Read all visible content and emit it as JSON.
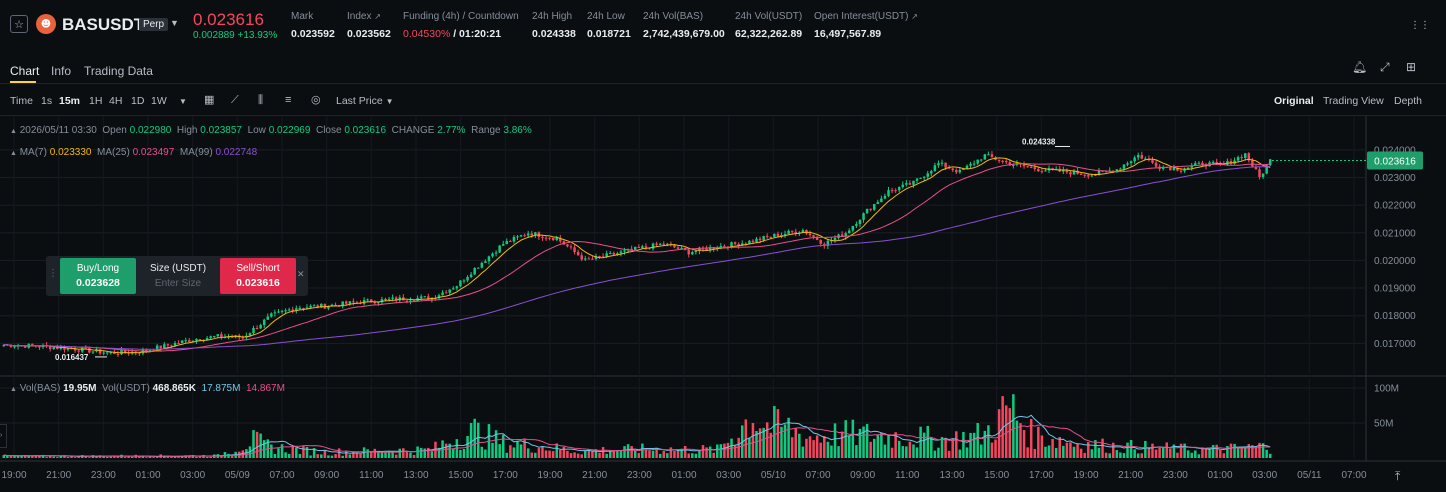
{
  "header": {
    "symbol": "BASUSDT",
    "badge": "Perp",
    "coin_icon": "bas-coin-logo",
    "last_price": "0.023616",
    "change_abs": "0.002889",
    "change_pct": "+13.93%",
    "stats": [
      {
        "label": "Mark",
        "value": "0.023592"
      },
      {
        "label": "Index",
        "value": "0.023562"
      },
      {
        "label": "Funding (4h) / Countdown",
        "value_rate": "0.04530%",
        "value_countdown": " / 01:20:21"
      },
      {
        "label": "24h High",
        "value": "0.024338"
      },
      {
        "label": "24h Low",
        "value": "0.018721"
      },
      {
        "label": "24h Vol(BAS)",
        "value": "2,742,439,679.00"
      },
      {
        "label": "24h Vol(USDT)",
        "value": "62,322,262.89"
      },
      {
        "label": "Open Interest(USDT)",
        "value": "16,497,567.89"
      }
    ]
  },
  "tabs": [
    {
      "label": "Chart",
      "active": true
    },
    {
      "label": "Info",
      "active": false
    },
    {
      "label": "Trading Data",
      "active": false
    }
  ],
  "toolbar": {
    "time_label": "Time",
    "intervals": [
      "1s",
      "15m",
      "1H",
      "4H",
      "1D",
      "1W"
    ],
    "active_interval": "15m",
    "price_type": "Last Price",
    "views": [
      "Original",
      "Trading View",
      "Depth"
    ],
    "active_view": "Original"
  },
  "ohlc": {
    "date": "2026/05/11 03:30",
    "open_label": "Open",
    "open": "0.022980",
    "high_label": "High",
    "high": "0.023857",
    "low_label": "Low",
    "low": "0.022969",
    "close_label": "Close",
    "close": "0.023616",
    "change_label": "CHANGE",
    "change": "2.77%",
    "range_label": "Range",
    "range": "3.86%"
  },
  "ma": {
    "ma7_label": "MA(7)",
    "ma7": "0.023330",
    "ma25_label": "MA(25)",
    "ma25": "0.023497",
    "ma99_label": "MA(99)",
    "ma99": "0.022748"
  },
  "trade_widget": {
    "buy_label": "Buy/Long",
    "buy_price": "0.023628",
    "size_label": "Size (USDT)",
    "size_placeholder": "Enter Size",
    "sell_label": "Sell/Short",
    "sell_price": "0.023616"
  },
  "volume": {
    "vol_bas_label": "Vol(BAS)",
    "vol_bas": "19.95M",
    "vol_usdt_label": "Vol(USDT)",
    "vol_usdt": "468.865K",
    "ma_a": "17.875M",
    "ma_b": "14.867M"
  },
  "colors": {
    "up": "#0ecb81",
    "down": "#f6465d",
    "ma7": "#f0b90b",
    "ma25": "#e84e8a",
    "ma99": "#8a4fd1",
    "vol_ma1": "#6fc6e8",
    "accent": "#fcd535"
  },
  "chart_data": {
    "type": "candlestick",
    "price_axis_ticks": [
      "0.024000",
      "0.023000",
      "0.022000",
      "0.021000",
      "0.020000",
      "0.019000",
      "0.018000",
      "0.017000"
    ],
    "volume_axis_ticks": [
      "100M",
      "50M"
    ],
    "x_ticks": [
      "19:00",
      "21:00",
      "23:00",
      "01:00",
      "03:00",
      "05/09",
      "07:00",
      "09:00",
      "11:00",
      "13:00",
      "15:00",
      "17:00",
      "19:00",
      "21:00",
      "23:00",
      "01:00",
      "03:00",
      "05/10",
      "07:00",
      "09:00",
      "11:00",
      "13:00",
      "15:00",
      "17:00",
      "19:00",
      "21:00",
      "23:00",
      "01:00",
      "03:00",
      "05/11",
      "07:00"
    ],
    "ylim": [
      0.016,
      0.0245
    ],
    "current_price_tag": "0.023616",
    "high_marker": "0.024338",
    "low_marker": "0.016437",
    "candle_close_path": [
      [
        0,
        0.01695
      ],
      [
        10,
        0.0169
      ],
      [
        20,
        0.0168
      ],
      [
        25,
        0.01672
      ],
      [
        30,
        0.01665
      ],
      [
        38,
        0.0167
      ],
      [
        45,
        0.0169
      ],
      [
        53,
        0.01715
      ],
      [
        60,
        0.01725
      ],
      [
        67,
        0.01722
      ],
      [
        75,
        0.018
      ],
      [
        82,
        0.0183
      ],
      [
        90,
        0.01835
      ],
      [
        100,
        0.0185
      ],
      [
        110,
        0.0186
      ],
      [
        120,
        0.01865
      ],
      [
        127,
        0.0191
      ],
      [
        132,
        0.0197
      ],
      [
        140,
        0.0206
      ],
      [
        147,
        0.021
      ],
      [
        155,
        0.0208
      ],
      [
        163,
        0.02
      ],
      [
        170,
        0.0202
      ],
      [
        177,
        0.0204
      ],
      [
        185,
        0.0206
      ],
      [
        192,
        0.0203
      ],
      [
        200,
        0.0205
      ],
      [
        208,
        0.02065
      ],
      [
        216,
        0.0209
      ],
      [
        224,
        0.0211
      ],
      [
        230,
        0.0206
      ],
      [
        236,
        0.021
      ],
      [
        242,
        0.0218
      ],
      [
        248,
        0.0225
      ],
      [
        255,
        0.0228
      ],
      [
        262,
        0.0235
      ],
      [
        268,
        0.0232
      ],
      [
        275,
        0.0238
      ],
      [
        282,
        0.0235
      ],
      [
        290,
        0.0233
      ],
      [
        298,
        0.0232
      ],
      [
        305,
        0.0231
      ],
      [
        312,
        0.0233
      ],
      [
        318,
        0.0238
      ],
      [
        324,
        0.0234
      ],
      [
        330,
        0.0233
      ],
      [
        336,
        0.0235
      ],
      [
        342,
        0.02345
      ],
      [
        348,
        0.02385
      ],
      [
        352,
        0.023
      ],
      [
        355,
        0.02362
      ]
    ],
    "volume_path": [
      [
        0,
        3
      ],
      [
        60,
        4
      ],
      [
        70,
        30
      ],
      [
        75,
        18
      ],
      [
        90,
        10
      ],
      [
        120,
        14
      ],
      [
        125,
        30
      ],
      [
        132,
        45
      ],
      [
        140,
        25
      ],
      [
        150,
        20
      ],
      [
        160,
        12
      ],
      [
        180,
        15
      ],
      [
        200,
        14
      ],
      [
        210,
        70
      ],
      [
        214,
        55
      ],
      [
        220,
        50
      ],
      [
        225,
        35
      ],
      [
        235,
        40
      ],
      [
        245,
        38
      ],
      [
        255,
        35
      ],
      [
        265,
        30
      ],
      [
        275,
        40
      ],
      [
        282,
        85
      ],
      [
        288,
        40
      ],
      [
        300,
        25
      ],
      [
        310,
        20
      ],
      [
        320,
        18
      ],
      [
        335,
        14
      ],
      [
        345,
        16
      ],
      [
        355,
        20
      ]
    ]
  }
}
